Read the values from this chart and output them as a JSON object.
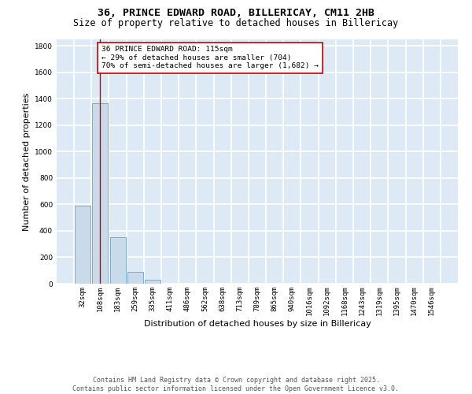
{
  "title_line1": "36, PRINCE EDWARD ROAD, BILLERICAY, CM11 2HB",
  "title_line2": "Size of property relative to detached houses in Billericay",
  "xlabel": "Distribution of detached houses by size in Billericay",
  "ylabel": "Number of detached properties",
  "categories": [
    "32sqm",
    "108sqm",
    "183sqm",
    "259sqm",
    "335sqm",
    "411sqm",
    "486sqm",
    "562sqm",
    "638sqm",
    "713sqm",
    "789sqm",
    "865sqm",
    "940sqm",
    "1016sqm",
    "1092sqm",
    "1168sqm",
    "1243sqm",
    "1319sqm",
    "1395sqm",
    "1470sqm",
    "1546sqm"
  ],
  "values": [
    590,
    1365,
    355,
    90,
    30,
    0,
    0,
    0,
    0,
    0,
    0,
    0,
    0,
    0,
    0,
    0,
    0,
    0,
    0,
    0,
    0
  ],
  "bar_color": "#c9daea",
  "bar_edge_color": "#6ba3c8",
  "ylim": [
    0,
    1850
  ],
  "yticks": [
    0,
    200,
    400,
    600,
    800,
    1000,
    1200,
    1400,
    1600,
    1800
  ],
  "vline_x": 1.0,
  "vline_color": "#cc0000",
  "annotation_text": "36 PRINCE EDWARD ROAD: 115sqm\n← 29% of detached houses are smaller (704)\n70% of semi-detached houses are larger (1,682) →",
  "annotation_box_facecolor": "#ffffff",
  "annotation_box_edgecolor": "#cc0000",
  "footer_line1": "Contains HM Land Registry data © Crown copyright and database right 2025.",
  "footer_line2": "Contains public sector information licensed under the Open Government Licence v3.0.",
  "fig_bg_color": "#ffffff",
  "plot_bg_color": "#ddeaf5",
  "grid_color": "#ffffff",
  "title_fontsize": 9.5,
  "subtitle_fontsize": 8.5,
  "tick_fontsize": 6.5,
  "label_fontsize": 8.0,
  "footer_fontsize": 6.0
}
